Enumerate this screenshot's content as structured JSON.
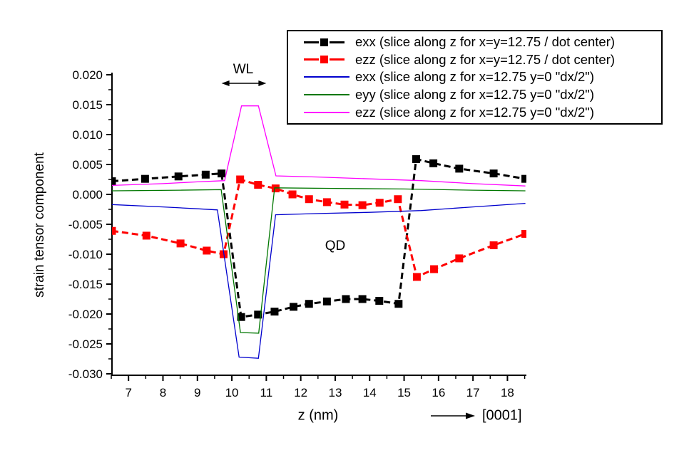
{
  "figure_title": "",
  "chart_data": {
    "type": "line",
    "title": "",
    "xlabel": "z (nm)",
    "ylabel": "strain tensor component",
    "xlim": [
      6.52,
      18.55
    ],
    "ylim": [
      -0.03,
      0.02
    ],
    "grid": false,
    "legend_position": "top-right",
    "x_tick_labels": [
      "7",
      "8",
      "9",
      "10",
      "11",
      "12",
      "13",
      "14",
      "15",
      "16",
      "17",
      "18"
    ],
    "x_tick_values": [
      7,
      8,
      9,
      10,
      11,
      12,
      13,
      14,
      15,
      16,
      17,
      18
    ],
    "x_minor_tick_step": 0.5,
    "y_tick_labels": [
      "0.020",
      "0.015",
      "0.010",
      "0.005",
      "0.000",
      "-0.005",
      "-0.010",
      "-0.015",
      "-0.020",
      "-0.025",
      "-0.030"
    ],
    "y_tick_values": [
      0.02,
      0.015,
      0.01,
      0.005,
      0.0,
      -0.005,
      -0.01,
      -0.015,
      -0.02,
      -0.025,
      -0.03
    ],
    "y_minor_tick_step": 0.0025,
    "annotations": {
      "wl": "WL",
      "qd": "QD",
      "direction": "[0001]",
      "wl_arrow_z_range": [
        9.7,
        11.0
      ]
    },
    "series": [
      {
        "name": "exx (slice along z for x=y=12.75 / dot center)",
        "color": "#000000",
        "style": "dashed-thick",
        "marker": "square",
        "points": [
          [
            6.52,
            0.0022
          ],
          [
            7.48,
            0.0026
          ],
          [
            8.45,
            0.003
          ],
          [
            9.24,
            0.0033
          ],
          [
            9.7,
            0.0035
          ],
          [
            10.27,
            -0.0205
          ],
          [
            10.76,
            -0.0201
          ],
          [
            11.24,
            -0.0196
          ],
          [
            11.79,
            -0.0188
          ],
          [
            12.24,
            -0.0183
          ],
          [
            12.76,
            -0.0179
          ],
          [
            13.31,
            -0.0175
          ],
          [
            13.79,
            -0.0175
          ],
          [
            14.28,
            -0.0178
          ],
          [
            14.84,
            -0.0183
          ],
          [
            15.35,
            0.0059
          ],
          [
            15.85,
            0.0052
          ],
          [
            16.6,
            0.0043
          ],
          [
            17.6,
            0.0035
          ],
          [
            18.52,
            0.0026
          ]
        ]
      },
      {
        "name": "ezz (slice along z for x=y=12.75 / dot center)",
        "color": "#ff0000",
        "style": "dashed-thick",
        "marker": "square",
        "points": [
          [
            6.52,
            -0.0061
          ],
          [
            7.52,
            -0.0069
          ],
          [
            8.51,
            -0.0082
          ],
          [
            9.27,
            -0.0094
          ],
          [
            9.76,
            -0.01
          ],
          [
            10.24,
            0.0025
          ],
          [
            10.76,
            0.0016
          ],
          [
            11.27,
            0.001
          ],
          [
            11.76,
            0.0
          ],
          [
            12.24,
            -0.0008
          ],
          [
            12.76,
            -0.0013
          ],
          [
            13.27,
            -0.0017
          ],
          [
            13.79,
            -0.0018
          ],
          [
            14.29,
            -0.0014
          ],
          [
            14.82,
            -0.0008
          ],
          [
            15.37,
            -0.0138
          ],
          [
            15.87,
            -0.0125
          ],
          [
            16.6,
            -0.0107
          ],
          [
            17.6,
            -0.0085
          ],
          [
            18.52,
            -0.0066
          ]
        ]
      },
      {
        "name": "exx (slice along z for x=12.75 y=0 \"dx/2\")",
        "color": "#0000cd",
        "style": "solid-thin",
        "marker": "none",
        "points": [
          [
            6.52,
            -0.0017
          ],
          [
            8.0,
            -0.0021
          ],
          [
            9.0,
            -0.0024
          ],
          [
            9.58,
            -0.0026
          ],
          [
            10.21,
            -0.0272
          ],
          [
            10.77,
            -0.0274
          ],
          [
            11.27,
            -0.0034
          ],
          [
            12.5,
            -0.0032
          ],
          [
            14.0,
            -0.003
          ],
          [
            15.5,
            -0.0027
          ],
          [
            17.0,
            -0.0021
          ],
          [
            18.52,
            -0.0015
          ]
        ]
      },
      {
        "name": "eyy (slice along z for x=12.75 y=0 \"dx/2\")",
        "color": "#007700",
        "style": "solid-thin",
        "marker": "none",
        "points": [
          [
            6.52,
            0.0006
          ],
          [
            8.5,
            0.0007
          ],
          [
            9.69,
            0.0008
          ],
          [
            10.25,
            -0.0231
          ],
          [
            10.78,
            -0.0232
          ],
          [
            11.24,
            0.0011
          ],
          [
            13.0,
            0.001
          ],
          [
            15.0,
            0.0009
          ],
          [
            17.0,
            0.0007
          ],
          [
            18.52,
            0.0006
          ]
        ]
      },
      {
        "name": "ezz (slice along z for x=12.75 y=0 \"dx/2\")",
        "color": "#ff00ff",
        "style": "solid-thin",
        "marker": "none",
        "points": [
          [
            6.52,
            0.0015
          ],
          [
            8.0,
            0.0018
          ],
          [
            9.0,
            0.0021
          ],
          [
            9.79,
            0.0023
          ],
          [
            10.28,
            0.0148
          ],
          [
            10.77,
            0.0148
          ],
          [
            11.28,
            0.0031
          ],
          [
            12.5,
            0.0029
          ],
          [
            14.0,
            0.0026
          ],
          [
            15.5,
            0.0023
          ],
          [
            17.0,
            0.0018
          ],
          [
            18.52,
            0.0014
          ]
        ]
      }
    ]
  },
  "legend": {
    "items": [
      {
        "label": "exx (slice along z for x=y=12.75 / dot center)",
        "color": "#000000",
        "sample": "dash-square"
      },
      {
        "label": "ezz (slice along z for x=y=12.75 / dot center)",
        "color": "#ff0000",
        "sample": "dash-square"
      },
      {
        "label": "exx (slice along z for x=12.75 y=0 \"dx/2\")",
        "color": "#0000cd",
        "sample": "line"
      },
      {
        "label": "eyy (slice along z for x=12.75 y=0 \"dx/2\")",
        "color": "#007700",
        "sample": "line"
      },
      {
        "label": "ezz (slice along z for x=12.75 y=0 \"dx/2\")",
        "color": "#ff00ff",
        "sample": "line"
      }
    ]
  }
}
